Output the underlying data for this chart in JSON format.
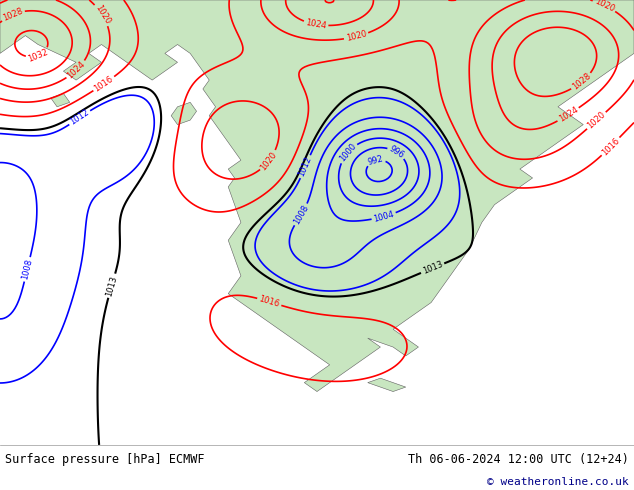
{
  "title_left": "Surface pressure [hPa] ECMWF",
  "title_right": "Th 06-06-2024 12:00 UTC (12+24)",
  "copyright": "© weatheronline.co.uk",
  "bg_color": "#cde4f0",
  "land_color": "#c8e6c0",
  "mountain_color": "#b0c8a8",
  "font_color_left": "#000000",
  "font_color_right": "#000000",
  "font_color_copy": "#000088",
  "footer_bg": "#ffffff",
  "figsize": [
    6.34,
    4.9
  ],
  "dpi": 100,
  "isobar_levels_blue": [
    992,
    996,
    1000,
    1004,
    1008,
    1012
  ],
  "isobar_levels_black": [
    1013
  ],
  "isobar_levels_red": [
    1016,
    1020,
    1024,
    1028,
    1032
  ],
  "lw_isobar": 1.2
}
